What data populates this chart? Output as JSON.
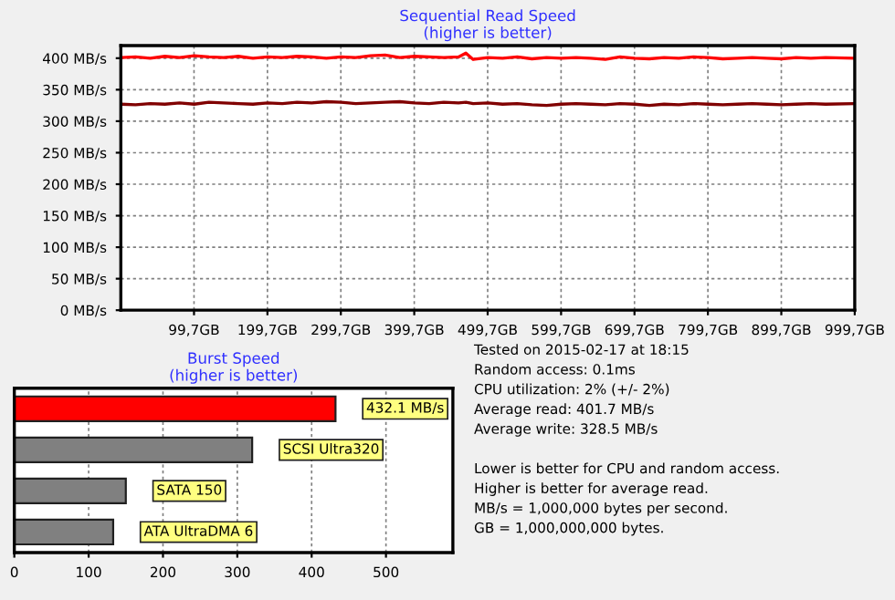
{
  "chart_data": [
    {
      "type": "line",
      "title": "Sequential Read Speed",
      "subtitle": "(higher is better)",
      "x": [
        0,
        20,
        40,
        60,
        80,
        100,
        120,
        140,
        160,
        180,
        200,
        220,
        240,
        260,
        280,
        300,
        320,
        340,
        360,
        380,
        400,
        420,
        440,
        460,
        470,
        480,
        500,
        520,
        540,
        560,
        580,
        600,
        620,
        640,
        660,
        680,
        700,
        720,
        740,
        760,
        780,
        800,
        820,
        840,
        860,
        880,
        900,
        920,
        940,
        960,
        999.7
      ],
      "series": [
        {
          "color": "#ff0000",
          "values": [
            401,
            402,
            400,
            403,
            401,
            404,
            402,
            401,
            403,
            400,
            402,
            401,
            403,
            402,
            400,
            402,
            401,
            404,
            405,
            401,
            403,
            402,
            401,
            402,
            408,
            398,
            401,
            400,
            402,
            399,
            401,
            400,
            401,
            400,
            398,
            402,
            400,
            399,
            401,
            400,
            402,
            401,
            399,
            400,
            401,
            400,
            399,
            401,
            400,
            401,
            400
          ]
        },
        {
          "color": "#800000",
          "values": [
            327,
            326,
            328,
            327,
            329,
            327,
            330,
            329,
            328,
            327,
            329,
            328,
            330,
            329,
            331,
            330,
            328,
            329,
            330,
            331,
            329,
            328,
            330,
            329,
            330,
            328,
            329,
            327,
            328,
            326,
            325,
            327,
            328,
            327,
            326,
            328,
            327,
            325,
            327,
            326,
            328,
            327,
            326,
            327,
            328,
            327,
            326,
            327,
            328,
            327,
            328
          ]
        }
      ],
      "xlim": [
        0,
        999.7
      ],
      "xticks": [
        {
          "value": 99.7,
          "label": "99,7GB"
        },
        {
          "value": 199.7,
          "label": "199,7GB"
        },
        {
          "value": 299.7,
          "label": "299,7GB"
        },
        {
          "value": 399.7,
          "label": "399,7GB"
        },
        {
          "value": 499.7,
          "label": "499,7GB"
        },
        {
          "value": 599.7,
          "label": "599,7GB"
        },
        {
          "value": 699.7,
          "label": "699,7GB"
        },
        {
          "value": 799.7,
          "label": "799,7GB"
        },
        {
          "value": 899.7,
          "label": "899,7GB"
        },
        {
          "value": 999.7,
          "label": "999,7GB"
        }
      ],
      "ylim": [
        0,
        420
      ],
      "yticks": [
        {
          "value": 0,
          "label": "0 MB/s"
        },
        {
          "value": 50,
          "label": "50 MB/s"
        },
        {
          "value": 100,
          "label": "100 MB/s"
        },
        {
          "value": 150,
          "label": "150 MB/s"
        },
        {
          "value": 200,
          "label": "200 MB/s"
        },
        {
          "value": 250,
          "label": "250 MB/s"
        },
        {
          "value": 300,
          "label": "300 MB/s"
        },
        {
          "value": 350,
          "label": "350 MB/s"
        },
        {
          "value": 400,
          "label": "400 MB/s"
        }
      ],
      "grid": true,
      "line_style": "solid"
    },
    {
      "type": "bar",
      "orientation": "horizontal",
      "title": "Burst Speed",
      "subtitle": "(higher is better)",
      "categories": [
        null,
        "SCSI Ultra320",
        "SATA 150",
        "ATA UltraDMA 6"
      ],
      "values": [
        432.1,
        320,
        150,
        133
      ],
      "colors": [
        "#ff0000",
        "#808080",
        "#808080",
        "#808080"
      ],
      "value_labels": [
        "432.1 MB/s",
        null,
        null,
        null
      ],
      "xlim": [
        0,
        590
      ],
      "xticks": [
        0,
        100,
        200,
        300,
        400,
        500
      ],
      "grid": "x",
      "tick_labels": "x"
    },
    {
      "type": "other",
      "annotations": [
        "Tested on 2015-02-17 at 18:15",
        "Random access: 0.1ms",
        "CPU utilization: 2% (+/- 2%)",
        "Average read: 401.7 MB/s",
        "Average write: 328.5 MB/s",
        "Lower is better for CPU and random access.",
        "Higher is better for average read.",
        "MB/s = 1,000,000 bytes per second.",
        "GB = 1,000,000,000 bytes."
      ]
    }
  ]
}
